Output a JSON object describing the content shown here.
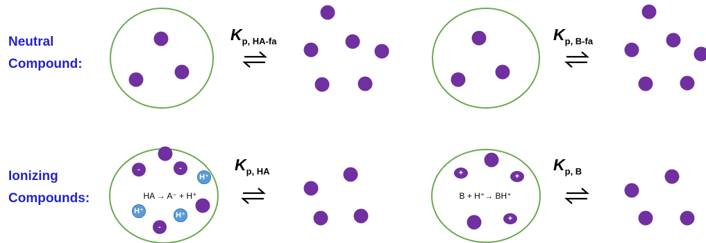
{
  "rows": [
    {
      "label": [
        "Neutral",
        "Compound:"
      ]
    },
    {
      "label": [
        "Ionizing",
        "Compounds:"
      ]
    }
  ],
  "constants": [
    {
      "symbol": "K",
      "subscript": "p, HA-fa"
    },
    {
      "symbol": "K",
      "subscript": "p, B-fa"
    },
    {
      "symbol": "K",
      "subscript": "p, HA"
    },
    {
      "symbol": "K",
      "subscript": "p, B"
    }
  ],
  "equations": [
    "HA → A⁻ + H⁺",
    "B + H⁺→ BH⁺"
  ],
  "ion_labels": {
    "anion": "-",
    "proton": "H⁺",
    "cation": "+"
  }
}
